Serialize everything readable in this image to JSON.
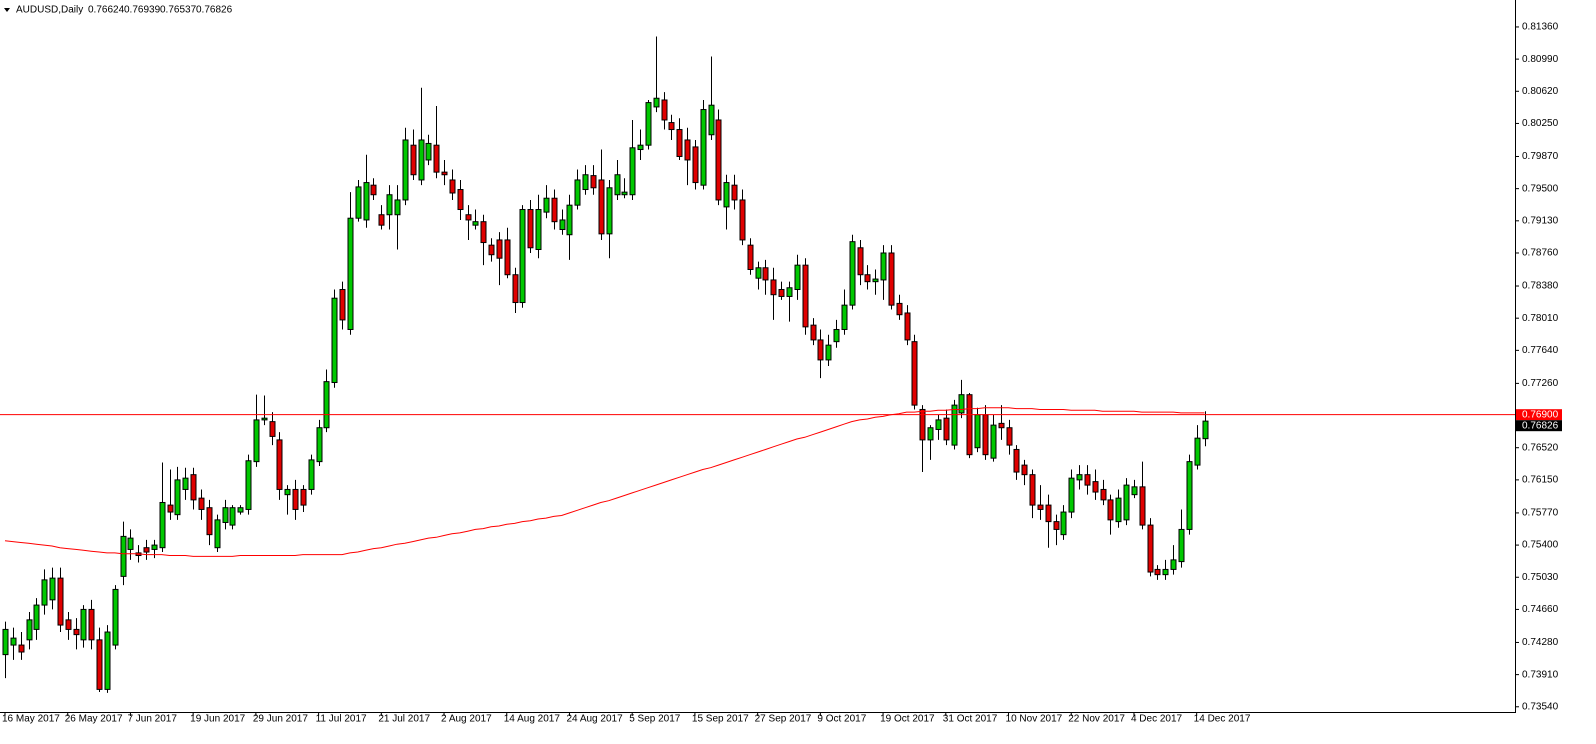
{
  "chart_data": {
    "type": "candlestick",
    "title": "AUDUSD,Daily",
    "categories": [
      "16 May 2017",
      null,
      null,
      null,
      null,
      null,
      null,
      null,
      "26 May 2017",
      null,
      null,
      null,
      null,
      null,
      null,
      null,
      "7 Jun 2017",
      null,
      null,
      null,
      null,
      null,
      null,
      null,
      "19 Jun 2017",
      null,
      null,
      null,
      null,
      null,
      null,
      null,
      "29 Jun 2017",
      null,
      null,
      null,
      null,
      null,
      null,
      null,
      "11 Jul 2017",
      null,
      null,
      null,
      null,
      null,
      null,
      null,
      "21 Jul 2017",
      null,
      null,
      null,
      null,
      null,
      null,
      null,
      "2 Aug 2017",
      null,
      null,
      null,
      null,
      null,
      null,
      null,
      "14 Aug 2017",
      null,
      null,
      null,
      null,
      null,
      null,
      null,
      "24 Aug 2017",
      null,
      null,
      null,
      null,
      null,
      null,
      null,
      "5 Sep 2017",
      null,
      null,
      null,
      null,
      null,
      null,
      null,
      "15 Sep 2017",
      null,
      null,
      null,
      null,
      null,
      null,
      null,
      "27 Sep 2017",
      null,
      null,
      null,
      null,
      null,
      null,
      null,
      "9 Oct 2017",
      null,
      null,
      null,
      null,
      null,
      null,
      null,
      "19 Oct 2017",
      null,
      null,
      null,
      null,
      null,
      null,
      null,
      "31 Oct 2017",
      null,
      null,
      null,
      null,
      null,
      null,
      null,
      "10 Nov 2017",
      null,
      null,
      null,
      null,
      null,
      null,
      null,
      "22 Nov 2017",
      null,
      null,
      null,
      null,
      null,
      null,
      null,
      "4 Dec 2017",
      null,
      null,
      null,
      null,
      null,
      null,
      null,
      "14 Dec 2017",
      null
    ],
    "open": [
      0.7414,
      0.7425,
      0.7425,
      0.7431,
      0.7443,
      0.7471,
      0.7477,
      0.7502,
      0.7454,
      0.7443,
      0.7431,
      0.7466,
      0.7431,
      0.7374,
      0.7425,
      0.7504,
      0.7535,
      0.7531,
      0.7537,
      0.7535,
      0.7537,
      0.7586,
      0.7575,
      0.7604,
      0.7621,
      0.7594,
      0.7583,
      0.7537,
      0.7566,
      0.7563,
      0.7578,
      0.7581,
      0.7636,
      0.7684,
      0.7682,
      0.7661,
      0.7598,
      0.7604,
      0.7604,
      0.7604,
      0.7636,
      0.7675,
      0.7727,
      0.7834,
      0.7788,
      0.7916,
      0.7914,
      0.7954,
      0.792,
      0.792,
      0.792,
      0.7937,
      0.8,
      0.796,
      0.7983,
      0.8,
      0.7969,
      0.796,
      0.7949,
      0.792,
      0.7908,
      0.7912,
      0.7885,
      0.7891,
      0.7891,
      0.7851,
      0.7819,
      0.7926,
      0.788,
      0.7923,
      0.7939,
      0.7903,
      0.7897,
      0.7931,
      0.7949,
      0.7965,
      0.796,
      0.7898,
      0.7943,
      0.7943,
      0.7943,
      0.7995,
      0.8,
      0.8044,
      0.8052,
      0.8026,
      0.8018,
      0.8006,
      0.7998,
      0.7954,
      0.8012,
      0.8029,
      0.7929,
      0.7954,
      0.7937,
      0.7885,
      0.7847,
      0.7859,
      0.7845,
      0.7834,
      0.7826,
      0.7834,
      0.7862,
      0.7793,
      0.7776,
      0.7753,
      0.7774,
      0.7788,
      0.7816,
      0.7882,
      0.7851,
      0.7843,
      0.7845,
      0.7876,
      0.7818,
      0.7807,
      0.7774,
      0.7696,
      0.7661,
      0.7673,
      0.7686,
      0.7655,
      0.7692,
      0.7713,
      0.7652,
      0.769,
      0.764,
      0.768,
      0.7675,
      0.765,
      0.7632,
      0.7621,
      0.7586,
      0.7586,
      0.7567,
      0.7552,
      0.7578,
      0.7615,
      0.7621,
      0.7613,
      0.7604,
      0.7592,
      0.7567,
      0.7569,
      0.7598,
      0.7607,
      0.7563,
      0.7512,
      0.7506,
      0.7512,
      0.7521,
      0.7558,
      0.7632,
      0.76624
    ],
    "high": [
      0.7452,
      0.7445,
      0.744,
      0.7463,
      0.7479,
      0.7512,
      0.7514,
      0.7514,
      0.7463,
      0.7456,
      0.7471,
      0.7477,
      0.7445,
      0.7448,
      0.7494,
      0.7567,
      0.7558,
      0.754,
      0.7546,
      0.7546,
      0.7635,
      0.7627,
      0.763,
      0.7629,
      0.7629,
      0.7604,
      0.7592,
      0.7575,
      0.7592,
      0.7586,
      0.7586,
      0.7644,
      0.7713,
      0.7712,
      0.7693,
      0.767,
      0.7609,
      0.7615,
      0.7609,
      0.7644,
      0.7684,
      0.7742,
      0.7834,
      0.7843,
      0.7946,
      0.796,
      0.7989,
      0.7962,
      0.7931,
      0.7954,
      0.7954,
      0.802,
      0.8018,
      0.8066,
      0.8012,
      0.8045,
      0.7983,
      0.7972,
      0.796,
      0.7931,
      0.7926,
      0.792,
      0.7893,
      0.79,
      0.7905,
      0.7859,
      0.7931,
      0.7937,
      0.7943,
      0.7954,
      0.7949,
      0.7926,
      0.7943,
      0.7972,
      0.7977,
      0.7977,
      0.7995,
      0.796,
      0.7983,
      0.7962,
      0.8029,
      0.8018,
      0.8052,
      0.8125,
      0.8061,
      0.8035,
      0.8031,
      0.802,
      0.8006,
      0.8052,
      0.8102,
      0.8041,
      0.7966,
      0.7966,
      0.7949,
      0.7893,
      0.7866,
      0.7868,
      0.7859,
      0.7843,
      0.7843,
      0.7874,
      0.787,
      0.7801,
      0.7788,
      0.7782,
      0.7799,
      0.7834,
      0.7897,
      0.7891,
      0.7862,
      0.7857,
      0.7885,
      0.7885,
      0.7828,
      0.7816,
      0.7782,
      0.7701,
      0.7678,
      0.769,
      0.7696,
      0.7707,
      0.773,
      0.7715,
      0.7698,
      0.7701,
      0.769,
      0.7701,
      0.7684,
      0.7655,
      0.7638,
      0.7627,
      0.7609,
      0.7598,
      0.7575,
      0.7586,
      0.7627,
      0.7632,
      0.7632,
      0.7627,
      0.7615,
      0.7598,
      0.7604,
      0.7617,
      0.7615,
      0.7636,
      0.7571,
      0.7517,
      0.7523,
      0.754,
      0.7581,
      0.7644,
      0.7678,
      0.76939
    ],
    "low": [
      0.7387,
      0.7408,
      0.7408,
      0.742,
      0.7431,
      0.746,
      0.7466,
      0.744,
      0.7431,
      0.742,
      0.7422,
      0.742,
      0.7371,
      0.737,
      0.742,
      0.7494,
      0.7523,
      0.752,
      0.7523,
      0.7525,
      0.7532,
      0.7569,
      0.7569,
      0.7592,
      0.7581,
      0.7569,
      0.754,
      0.7532,
      0.7558,
      0.7558,
      0.7575,
      0.7575,
      0.763,
      0.7678,
      0.7655,
      0.7592,
      0.7575,
      0.7569,
      0.7578,
      0.7598,
      0.7631,
      0.767,
      0.7721,
      0.7788,
      0.7782,
      0.7912,
      0.7905,
      0.7937,
      0.7903,
      0.7903,
      0.788,
      0.7931,
      0.796,
      0.7954,
      0.7977,
      0.7962,
      0.7954,
      0.7937,
      0.7914,
      0.7891,
      0.7903,
      0.7862,
      0.7866,
      0.7839,
      0.7847,
      0.7807,
      0.7813,
      0.7876,
      0.787,
      0.7916,
      0.7903,
      0.7897,
      0.7868,
      0.7926,
      0.7943,
      0.7943,
      0.7891,
      0.787,
      0.7937,
      0.7939,
      0.7937,
      0.7983,
      0.7995,
      0.8038,
      0.8018,
      0.8006,
      0.7983,
      0.7954,
      0.7949,
      0.7949,
      0.8006,
      0.7931,
      0.7903,
      0.7926,
      0.7885,
      0.7851,
      0.7834,
      0.7828,
      0.7799,
      0.7822,
      0.7797,
      0.7822,
      0.7782,
      0.777,
      0.7732,
      0.7746,
      0.7767,
      0.7782,
      0.7811,
      0.7839,
      0.7834,
      0.7828,
      0.7822,
      0.7811,
      0.7799,
      0.777,
      0.7696,
      0.7624,
      0.7638,
      0.7661,
      0.7655,
      0.765,
      0.7686,
      0.764,
      0.7647,
      0.7638,
      0.7636,
      0.7661,
      0.7644,
      0.7615,
      0.7609,
      0.7571,
      0.7569,
      0.7537,
      0.754,
      0.7546,
      0.7571,
      0.7604,
      0.7598,
      0.7592,
      0.7586,
      0.7552,
      0.756,
      0.7563,
      0.7594,
      0.7558,
      0.7504,
      0.75,
      0.75,
      0.7506,
      0.7514,
      0.7552,
      0.7627,
      0.76537
    ],
    "close": [
      0.7443,
      0.7433,
      0.7417,
      0.7454,
      0.7471,
      0.75,
      0.7502,
      0.7448,
      0.7443,
      0.7437,
      0.7466,
      0.7431,
      0.7374,
      0.744,
      0.7489,
      0.755,
      0.7548,
      0.7528,
      0.7532,
      0.754,
      0.7589,
      0.7578,
      0.7615,
      0.7617,
      0.7592,
      0.7581,
      0.7552,
      0.7569,
      0.7583,
      0.7583,
      0.7583,
      0.7637,
      0.7684,
      0.7686,
      0.7665,
      0.7604,
      0.7604,
      0.7581,
      0.7586,
      0.7638,
      0.7675,
      0.7728,
      0.7824,
      0.7799,
      0.7916,
      0.7952,
      0.7957,
      0.7943,
      0.7908,
      0.7943,
      0.7937,
      0.8006,
      0.7966,
      0.8006,
      0.8002,
      0.7969,
      0.7966,
      0.7945,
      0.7926,
      0.7914,
      0.7912,
      0.7888,
      0.7874,
      0.787,
      0.7851,
      0.7819,
      0.7926,
      0.7882,
      0.7926,
      0.7939,
      0.7912,
      0.7914,
      0.7931,
      0.796,
      0.7966,
      0.7951,
      0.7898,
      0.7951,
      0.7966,
      0.7946,
      0.7997,
      0.8,
      0.8049,
      0.8054,
      0.8029,
      0.8018,
      0.7987,
      0.7983,
      0.7957,
      0.8041,
      0.8046,
      0.7937,
      0.7957,
      0.7937,
      0.7891,
      0.7857,
      0.7859,
      0.7845,
      0.7828,
      0.7826,
      0.7836,
      0.7862,
      0.7791,
      0.7776,
      0.7753,
      0.777,
      0.7788,
      0.7816,
      0.7889,
      0.7851,
      0.7843,
      0.7846,
      0.7876,
      0.7816,
      0.7805,
      0.7776,
      0.7701,
      0.7661,
      0.7675,
      0.7684,
      0.7661,
      0.7701,
      0.7713,
      0.7644,
      0.769,
      0.7644,
      0.7678,
      0.7675,
      0.7655,
      0.7624,
      0.7621,
      0.7586,
      0.7581,
      0.7567,
      0.7558,
      0.7578,
      0.7617,
      0.7621,
      0.7609,
      0.7601,
      0.7592,
      0.7569,
      0.7594,
      0.7609,
      0.7607,
      0.7563,
      0.7509,
      0.7506,
      0.7512,
      0.7523,
      0.7558,
      0.7636,
      0.7663,
      0.76826
    ],
    "up_color": "#00c800",
    "down_color": "#e00000",
    "outline_color": "#000000",
    "moving_average": {
      "color": "#ff0000",
      "values": [
        0.7545,
        0.7544,
        0.7543,
        0.7542,
        0.7541,
        0.754,
        0.7539,
        0.7537,
        0.7536,
        0.7535,
        0.7534,
        0.7533,
        0.7532,
        0.7531,
        0.7531,
        0.753,
        0.753,
        0.753,
        0.7529,
        0.7529,
        0.7529,
        0.7528,
        0.7528,
        0.7528,
        0.7527,
        0.7527,
        0.7527,
        0.7527,
        0.7527,
        0.7527,
        0.7528,
        0.7528,
        0.7528,
        0.7528,
        0.7528,
        0.7528,
        0.7528,
        0.7528,
        0.7529,
        0.7529,
        0.7529,
        0.7529,
        0.7529,
        0.7529,
        0.7531,
        0.7532,
        0.7534,
        0.7536,
        0.7537,
        0.7539,
        0.7541,
        0.7542,
        0.7544,
        0.7546,
        0.7548,
        0.7549,
        0.7551,
        0.7553,
        0.7554,
        0.7556,
        0.7558,
        0.7559,
        0.7561,
        0.7562,
        0.7564,
        0.7565,
        0.7567,
        0.7568,
        0.757,
        0.7571,
        0.7573,
        0.7574,
        0.7577,
        0.758,
        0.7583,
        0.7586,
        0.7589,
        0.7591,
        0.7594,
        0.7597,
        0.76,
        0.7603,
        0.7606,
        0.7609,
        0.7612,
        0.7615,
        0.7618,
        0.7621,
        0.7624,
        0.7627,
        0.7629,
        0.7632,
        0.7635,
        0.7638,
        0.7641,
        0.7644,
        0.7647,
        0.765,
        0.7653,
        0.7656,
        0.7659,
        0.7662,
        0.7664,
        0.7667,
        0.767,
        0.7673,
        0.7676,
        0.7679,
        0.7682,
        0.7684,
        0.7685,
        0.7687,
        0.7688,
        0.769,
        0.7691,
        0.7693,
        0.7693,
        0.7694,
        0.7694,
        0.7695,
        0.7695,
        0.7696,
        0.7696,
        0.7697,
        0.7697,
        0.7698,
        0.7698,
        0.7698,
        0.7698,
        0.7697,
        0.7697,
        0.7697,
        0.7696,
        0.7696,
        0.7696,
        0.7696,
        0.7695,
        0.7695,
        0.7695,
        0.7695,
        0.7694,
        0.7694,
        0.7694,
        0.7694,
        0.7694,
        0.7693,
        0.7693,
        0.7693,
        0.7693,
        0.7693,
        0.7692,
        0.7692,
        0.7692,
        0.7692
      ]
    },
    "hline": {
      "value": 0.769,
      "label": "0.76900",
      "color": "#ff0000"
    },
    "ylim": [
      0.7348,
      0.8167
    ],
    "yticks": [
      {
        "value": 0.8136,
        "label": "0.81360"
      },
      {
        "value": 0.8099,
        "label": "0.80990"
      },
      {
        "value": 0.8062,
        "label": "0.80620"
      },
      {
        "value": 0.8025,
        "label": "0.80250"
      },
      {
        "value": 0.7987,
        "label": "0.79870"
      },
      {
        "value": 0.795,
        "label": "0.79500"
      },
      {
        "value": 0.7913,
        "label": "0.79130"
      },
      {
        "value": 0.7876,
        "label": "0.78760"
      },
      {
        "value": 0.7838,
        "label": "0.78380"
      },
      {
        "value": 0.7801,
        "label": "0.78010"
      },
      {
        "value": 0.7764,
        "label": "0.77640"
      },
      {
        "value": 0.7726,
        "label": "0.77260"
      },
      {
        "value": 0.7652,
        "label": "0.76520"
      },
      {
        "value": 0.7615,
        "label": "0.76150"
      },
      {
        "value": 0.7577,
        "label": "0.75770"
      },
      {
        "value": 0.754,
        "label": "0.75400"
      },
      {
        "value": 0.7503,
        "label": "0.75030"
      },
      {
        "value": 0.7466,
        "label": "0.74660"
      },
      {
        "value": 0.7428,
        "label": "0.74280"
      },
      {
        "value": 0.7391,
        "label": "0.73910"
      },
      {
        "value": 0.7354,
        "label": "0.73540"
      }
    ],
    "grid": false
  }
}
